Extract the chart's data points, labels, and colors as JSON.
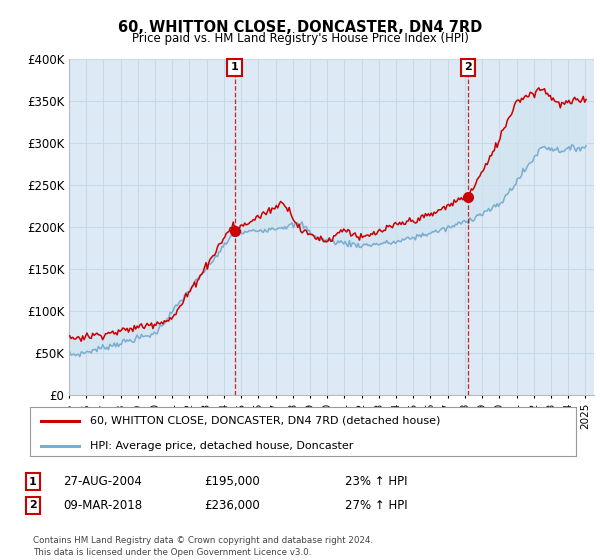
{
  "title": "60, WHITTON CLOSE, DONCASTER, DN4 7RD",
  "subtitle": "Price paid vs. HM Land Registry's House Price Index (HPI)",
  "legend_label_red": "60, WHITTON CLOSE, DONCASTER, DN4 7RD (detached house)",
  "legend_label_blue": "HPI: Average price, detached house, Doncaster",
  "sale1_date": "27-AUG-2004",
  "sale1_price": 195000,
  "sale1_hpi_pct": "23% ↑ HPI",
  "sale2_date": "09-MAR-2018",
  "sale2_price": 236000,
  "sale2_hpi_pct": "27% ↑ HPI",
  "footer": "Contains HM Land Registry data © Crown copyright and database right 2024.\nThis data is licensed under the Open Government Licence v3.0.",
  "ylim": [
    0,
    400000
  ],
  "yticks": [
    0,
    50000,
    100000,
    150000,
    200000,
    250000,
    300000,
    350000,
    400000
  ],
  "red_color": "#cc0000",
  "blue_color": "#7aadcf",
  "fill_color": "#d0e4f0",
  "bg_color": "#ddeaf5",
  "grid_color": "#c8d8e8",
  "sale1_t": 2004.625,
  "sale2_t": 2018.167
}
